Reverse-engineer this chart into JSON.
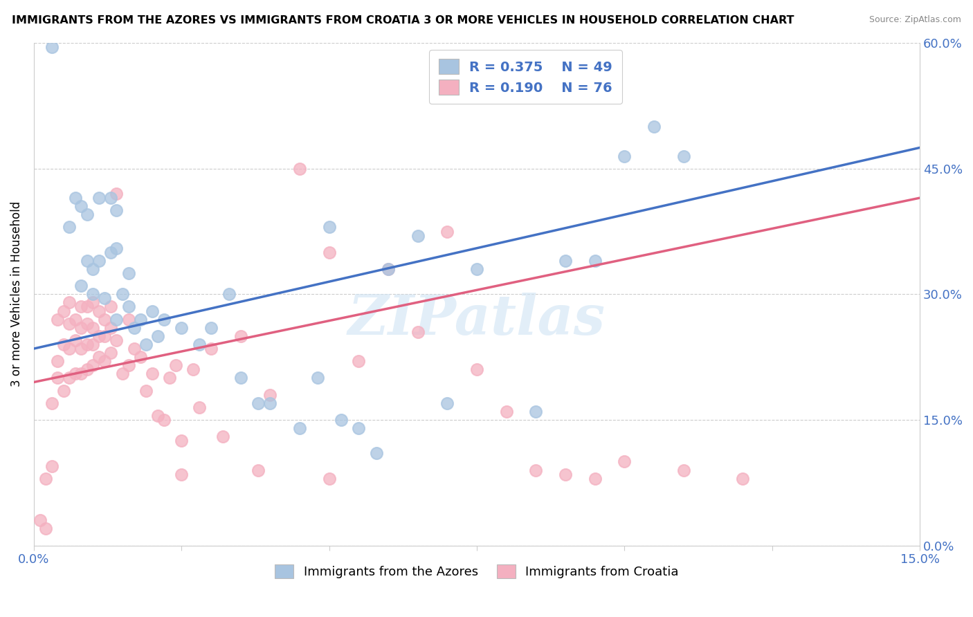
{
  "title": "IMMIGRANTS FROM THE AZORES VS IMMIGRANTS FROM CROATIA 3 OR MORE VEHICLES IN HOUSEHOLD CORRELATION CHART",
  "source": "Source: ZipAtlas.com",
  "ylabel": "3 or more Vehicles in Household",
  "xlim": [
    0.0,
    0.15
  ],
  "ylim": [
    0.0,
    0.6
  ],
  "xticks": [
    0.0,
    0.025,
    0.05,
    0.075,
    0.1,
    0.125,
    0.15
  ],
  "yticks": [
    0.0,
    0.15,
    0.3,
    0.45,
    0.6
  ],
  "ytick_labels_right": [
    "0.0%",
    "15.0%",
    "30.0%",
    "45.0%",
    "60.0%"
  ],
  "xtick_labels": [
    "0.0%",
    "",
    "",
    "",
    "",
    "",
    "15.0%"
  ],
  "azores_color": "#a8c4e0",
  "croatia_color": "#f4b0c0",
  "azores_line_color": "#4472c4",
  "croatia_line_color": "#e06080",
  "R_azores": 0.375,
  "N_azores": 49,
  "R_croatia": 0.19,
  "N_croatia": 76,
  "watermark": "ZIPatlas",
  "azores_line": {
    "x0": 0.0,
    "y0": 0.235,
    "x1": 0.15,
    "y1": 0.475
  },
  "croatia_line": {
    "x0": 0.0,
    "y0": 0.195,
    "x1": 0.15,
    "y1": 0.415
  },
  "azores_x": [
    0.003,
    0.006,
    0.007,
    0.008,
    0.008,
    0.009,
    0.009,
    0.01,
    0.01,
    0.011,
    0.011,
    0.012,
    0.013,
    0.013,
    0.014,
    0.014,
    0.014,
    0.015,
    0.016,
    0.016,
    0.017,
    0.018,
    0.019,
    0.02,
    0.021,
    0.022,
    0.025,
    0.028,
    0.03,
    0.033,
    0.035,
    0.038,
    0.04,
    0.045,
    0.048,
    0.05,
    0.052,
    0.055,
    0.058,
    0.06,
    0.065,
    0.07,
    0.075,
    0.085,
    0.09,
    0.095,
    0.1,
    0.105,
    0.11
  ],
  "azores_y": [
    0.595,
    0.38,
    0.415,
    0.31,
    0.405,
    0.395,
    0.34,
    0.33,
    0.3,
    0.34,
    0.415,
    0.295,
    0.35,
    0.415,
    0.4,
    0.355,
    0.27,
    0.3,
    0.325,
    0.285,
    0.26,
    0.27,
    0.24,
    0.28,
    0.25,
    0.27,
    0.26,
    0.24,
    0.26,
    0.3,
    0.2,
    0.17,
    0.17,
    0.14,
    0.2,
    0.38,
    0.15,
    0.14,
    0.11,
    0.33,
    0.37,
    0.17,
    0.33,
    0.16,
    0.34,
    0.34,
    0.465,
    0.5,
    0.465
  ],
  "croatia_x": [
    0.001,
    0.002,
    0.002,
    0.003,
    0.003,
    0.004,
    0.004,
    0.004,
    0.005,
    0.005,
    0.005,
    0.006,
    0.006,
    0.006,
    0.006,
    0.007,
    0.007,
    0.007,
    0.008,
    0.008,
    0.008,
    0.008,
    0.009,
    0.009,
    0.009,
    0.009,
    0.01,
    0.01,
    0.01,
    0.01,
    0.011,
    0.011,
    0.011,
    0.012,
    0.012,
    0.012,
    0.013,
    0.013,
    0.013,
    0.014,
    0.014,
    0.015,
    0.016,
    0.016,
    0.017,
    0.018,
    0.019,
    0.02,
    0.021,
    0.022,
    0.023,
    0.024,
    0.025,
    0.027,
    0.028,
    0.03,
    0.032,
    0.035,
    0.038,
    0.04,
    0.045,
    0.05,
    0.055,
    0.06,
    0.065,
    0.07,
    0.075,
    0.08,
    0.085,
    0.09,
    0.095,
    0.1,
    0.11,
    0.12,
    0.025,
    0.05
  ],
  "croatia_y": [
    0.03,
    0.08,
    0.02,
    0.17,
    0.095,
    0.2,
    0.22,
    0.27,
    0.185,
    0.24,
    0.28,
    0.2,
    0.235,
    0.265,
    0.29,
    0.205,
    0.245,
    0.27,
    0.205,
    0.235,
    0.26,
    0.285,
    0.21,
    0.24,
    0.265,
    0.285,
    0.215,
    0.24,
    0.26,
    0.29,
    0.225,
    0.25,
    0.28,
    0.22,
    0.25,
    0.27,
    0.23,
    0.26,
    0.285,
    0.245,
    0.42,
    0.205,
    0.215,
    0.27,
    0.235,
    0.225,
    0.185,
    0.205,
    0.155,
    0.15,
    0.2,
    0.215,
    0.125,
    0.21,
    0.165,
    0.235,
    0.13,
    0.25,
    0.09,
    0.18,
    0.45,
    0.35,
    0.22,
    0.33,
    0.255,
    0.375,
    0.21,
    0.16,
    0.09,
    0.085,
    0.08,
    0.1,
    0.09,
    0.08,
    0.085,
    0.08
  ]
}
